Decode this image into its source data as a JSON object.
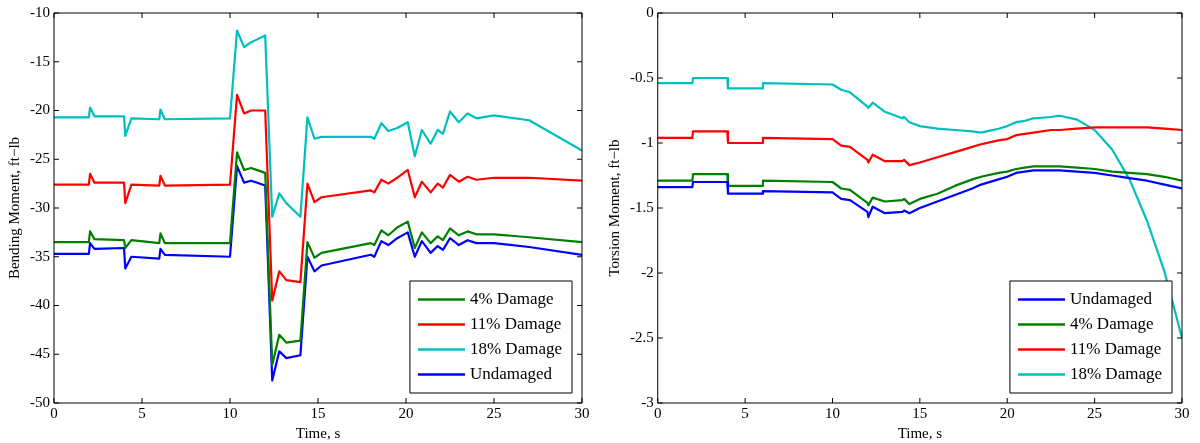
{
  "chart_data": [
    {
      "type": "line",
      "xlabel": "Time, s",
      "ylabel": "Bending Moment, ft−lb",
      "xlim": [
        0,
        30
      ],
      "xticks": [
        0,
        5,
        10,
        15,
        20,
        25,
        30
      ],
      "ylim": [
        -50,
        -10
      ],
      "yticks": [
        -50,
        -45,
        -40,
        -35,
        -30,
        -25,
        -20,
        -15,
        -10
      ],
      "grid": false,
      "legend": "bottom right",
      "line_style": "solid",
      "marker": "none",
      "x": [
        0,
        1.98,
        2.05,
        2.3,
        3.98,
        4.05,
        4.4,
        5.98,
        6.05,
        6.3,
        10,
        10.4,
        10.8,
        11.2,
        12,
        12.4,
        12.8,
        13.2,
        14,
        14.4,
        14.8,
        15.2,
        18,
        18.2,
        18.6,
        19,
        19.5,
        20.1,
        20.5,
        20.9,
        21.4,
        21.8,
        22.1,
        22.5,
        23,
        23.5,
        24,
        25,
        27,
        30
      ],
      "series": [
        {
          "name": "4% Damage",
          "color": "#008000",
          "values": [
            -33.5,
            -33.5,
            -32.4,
            -33.2,
            -33.3,
            -34.1,
            -33.3,
            -33.6,
            -32.6,
            -33.6,
            -33.6,
            -24.3,
            -26.1,
            -25.9,
            -26.4,
            -46.1,
            -43,
            -43.8,
            -43.6,
            -33.5,
            -35.1,
            -34.6,
            -33.6,
            -33.8,
            -32.3,
            -32.8,
            -32,
            -31.4,
            -34.1,
            -32.5,
            -33.6,
            -32.9,
            -33.3,
            -32.1,
            -32.8,
            -32.4,
            -32.7,
            -32.7,
            -33,
            -33.5
          ]
        },
        {
          "name": "11% Damage",
          "color": "#ff0000",
          "values": [
            -27.6,
            -27.6,
            -26.5,
            -27.4,
            -27.4,
            -29.5,
            -27.6,
            -27.7,
            -26.7,
            -27.7,
            -27.6,
            -18.4,
            -20.3,
            -20,
            -20,
            -39.5,
            -36.5,
            -37.4,
            -37.6,
            -27.5,
            -29.4,
            -28.9,
            -28.2,
            -28.4,
            -27.1,
            -27.5,
            -26.9,
            -26.1,
            -28.9,
            -27.3,
            -28.4,
            -27.5,
            -27.9,
            -26.6,
            -27.3,
            -26.8,
            -27.1,
            -26.9,
            -26.9,
            -27.2
          ]
        },
        {
          "name": "18% Damage",
          "color": "#00bfbf",
          "values": [
            -20.7,
            -20.7,
            -19.7,
            -20.6,
            -20.6,
            -22.6,
            -20.8,
            -20.9,
            -19.9,
            -20.9,
            -20.8,
            -11.8,
            -13.5,
            -13,
            -12.3,
            -30.9,
            -28.5,
            -29.5,
            -30.9,
            -20.7,
            -22.9,
            -22.7,
            -22.7,
            -22.9,
            -21.3,
            -22.1,
            -21.8,
            -21.2,
            -24.7,
            -22,
            -23.4,
            -22,
            -22.4,
            -20.1,
            -21.2,
            -20.3,
            -20.8,
            -20.5,
            -21,
            -24.1
          ]
        },
        {
          "name": "Undamaged",
          "color": "#0000ff",
          "values": [
            -34.7,
            -34.7,
            -33.6,
            -34.2,
            -34.1,
            -36.2,
            -35,
            -35.2,
            -34.2,
            -34.8,
            -35,
            -25.7,
            -27.4,
            -27.2,
            -27.7,
            -47.7,
            -44.7,
            -45.4,
            -45.1,
            -35,
            -36.5,
            -35.9,
            -34.8,
            -35,
            -33.4,
            -33.8,
            -33.1,
            -32.5,
            -35,
            -33.4,
            -34.6,
            -33.9,
            -34.3,
            -33.1,
            -33.8,
            -33.3,
            -33.6,
            -33.6,
            -34,
            -34.8
          ]
        }
      ]
    },
    {
      "type": "line",
      "xlabel": "Time, s",
      "ylabel": "Torsion Moment, ft−lb",
      "xlim": [
        0,
        30
      ],
      "xticks": [
        0,
        5,
        10,
        15,
        20,
        25,
        30
      ],
      "ylim": [
        -3,
        0
      ],
      "yticks": [
        -3,
        -2.5,
        -2,
        -1.5,
        -1,
        -0.5,
        0
      ],
      "grid": false,
      "legend": "bottom right",
      "line_style": "solid",
      "marker": "none",
      "x": [
        0,
        1.98,
        2.02,
        3.98,
        4.02,
        5.98,
        6.02,
        10,
        10.5,
        11,
        12,
        12.05,
        12.3,
        13,
        14,
        14.1,
        14.4,
        15,
        16,
        17,
        18,
        18.5,
        19.5,
        20,
        20.5,
        21,
        21.5,
        22.5,
        23,
        24,
        25,
        26,
        27,
        28,
        29,
        30
      ],
      "series": [
        {
          "name": "Undamaged",
          "color": "#0000ff",
          "values": [
            -1.34,
            -1.34,
            -1.3,
            -1.3,
            -1.39,
            -1.39,
            -1.37,
            -1.38,
            -1.43,
            -1.44,
            -1.53,
            -1.57,
            -1.49,
            -1.54,
            -1.53,
            -1.52,
            -1.54,
            -1.5,
            -1.45,
            -1.4,
            -1.35,
            -1.32,
            -1.28,
            -1.26,
            -1.23,
            -1.22,
            -1.21,
            -1.21,
            -1.21,
            -1.22,
            -1.23,
            -1.25,
            -1.27,
            -1.29,
            -1.32,
            -1.35
          ]
        },
        {
          "name": "4% Damage",
          "color": "#008000",
          "values": [
            -1.29,
            -1.29,
            -1.24,
            -1.24,
            -1.33,
            -1.33,
            -1.29,
            -1.3,
            -1.35,
            -1.36,
            -1.46,
            -1.48,
            -1.42,
            -1.45,
            -1.44,
            -1.43,
            -1.47,
            -1.43,
            -1.39,
            -1.33,
            -1.28,
            -1.26,
            -1.23,
            -1.22,
            -1.2,
            -1.19,
            -1.18,
            -1.18,
            -1.18,
            -1.19,
            -1.2,
            -1.22,
            -1.23,
            -1.24,
            -1.26,
            -1.29
          ]
        },
        {
          "name": "11% Damage",
          "color": "#ff0000",
          "values": [
            -0.96,
            -0.96,
            -0.91,
            -0.91,
            -1,
            -1,
            -0.96,
            -0.97,
            -1.02,
            -1.03,
            -1.13,
            -1.15,
            -1.09,
            -1.14,
            -1.14,
            -1.13,
            -1.17,
            -1.15,
            -1.11,
            -1.07,
            -1.03,
            -1.01,
            -0.98,
            -0.97,
            -0.94,
            -0.93,
            -0.92,
            -0.9,
            -0.9,
            -0.89,
            -0.88,
            -0.88,
            -0.88,
            -0.88,
            -0.89,
            -0.9
          ]
        },
        {
          "name": "18% Damage",
          "color": "#00bfbf",
          "values": [
            -0.54,
            -0.54,
            -0.5,
            -0.5,
            -0.58,
            -0.58,
            -0.54,
            -0.55,
            -0.59,
            -0.61,
            -0.72,
            -0.73,
            -0.69,
            -0.76,
            -0.81,
            -0.8,
            -0.84,
            -0.87,
            -0.89,
            -0.9,
            -0.91,
            -0.92,
            -0.89,
            -0.87,
            -0.84,
            -0.83,
            -0.81,
            -0.8,
            -0.79,
            -0.82,
            -0.9,
            -1.05,
            -1.28,
            -1.6,
            -1.99,
            -2.5
          ]
        }
      ]
    }
  ]
}
